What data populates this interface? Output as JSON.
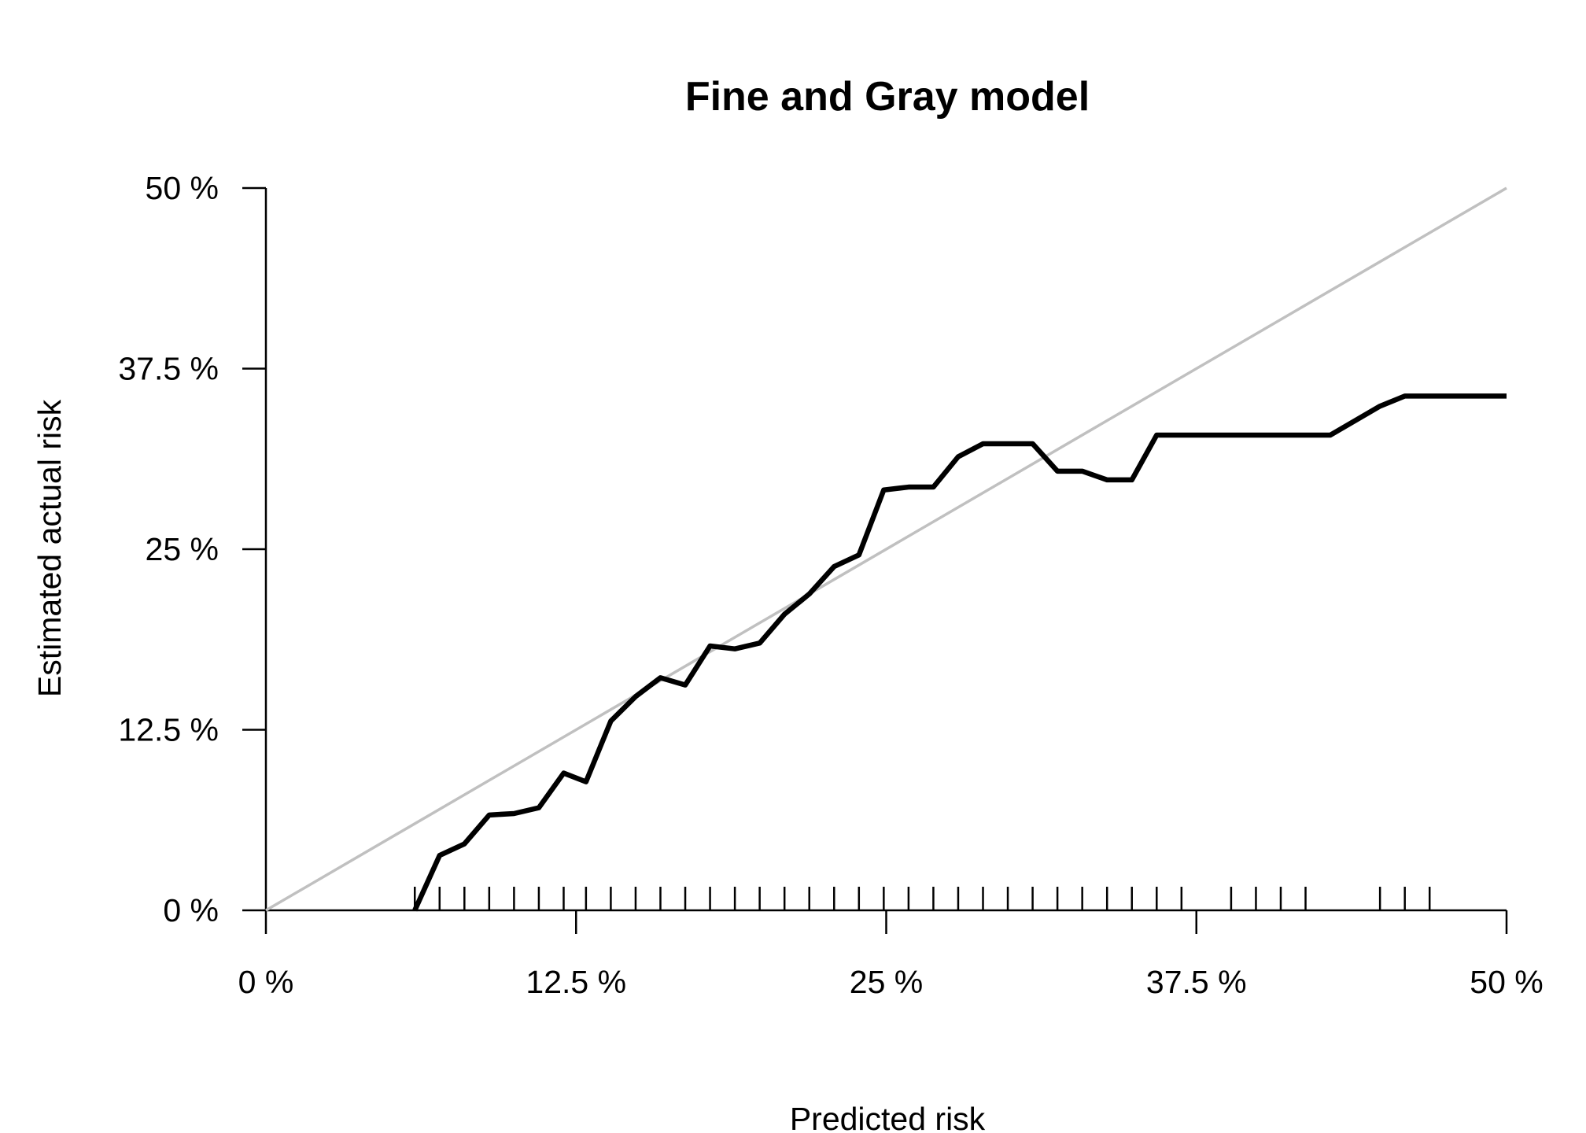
{
  "chart_data": {
    "type": "line",
    "title": "Fine and Gray model",
    "xlabel": "Predicted risk",
    "ylabel": "Estimated actual risk",
    "xlim": [
      0,
      50
    ],
    "ylim": [
      0,
      50
    ],
    "x_ticks": [
      "0 %",
      "12.5 %",
      "25 %",
      "37.5 %",
      "50 %"
    ],
    "y_ticks": [
      "0 %",
      "12.5 %",
      "25 %",
      "37.5 %",
      "50 %"
    ],
    "x_tick_values": [
      0,
      12.5,
      25,
      37.5,
      50
    ],
    "y_tick_values": [
      0,
      12.5,
      25,
      37.5,
      50
    ],
    "grid": false,
    "colors": {
      "calibration": "#000000",
      "reference": "#c0c0c0"
    },
    "series": [
      {
        "role": "reference-diagonal",
        "x": [
          0,
          50
        ],
        "y": [
          0,
          50
        ]
      },
      {
        "role": "calibration-curve",
        "x": [
          6.0,
          7.0,
          8.0,
          9.0,
          10.0,
          11.0,
          12.0,
          12.9,
          13.9,
          14.9,
          15.9,
          16.9,
          17.9,
          18.9,
          19.9,
          20.9,
          21.9,
          22.9,
          23.9,
          24.9,
          25.9,
          26.9,
          27.9,
          28.9,
          29.9,
          30.9,
          31.9,
          32.9,
          33.9,
          34.9,
          35.9,
          36.9,
          37.9,
          38.9,
          39.9,
          40.9,
          41.9,
          42.9,
          43.9,
          44.9,
          45.9,
          46.9,
          47.9,
          48.9,
          50.0
        ],
        "y": [
          0,
          3.8,
          4.6,
          6.6,
          6.7,
          7.1,
          9.5,
          8.9,
          13.1,
          14.8,
          16.1,
          15.6,
          18.3,
          18.1,
          18.5,
          20.5,
          21.9,
          23.8,
          24.6,
          29.1,
          29.3,
          29.3,
          31.4,
          32.3,
          32.3,
          32.3,
          30.4,
          30.4,
          29.8,
          29.8,
          32.9,
          32.9,
          32.9,
          32.9,
          32.9,
          32.9,
          32.9,
          32.9,
          33.9,
          34.9,
          35.6,
          35.6,
          35.6,
          35.6,
          35.6
        ]
      }
    ],
    "rug": [
      6.0,
      7.0,
      8.0,
      9.0,
      10.0,
      11.0,
      12.0,
      12.9,
      13.9,
      14.9,
      15.9,
      16.9,
      17.9,
      18.9,
      19.9,
      20.9,
      21.9,
      22.9,
      23.9,
      24.9,
      25.9,
      26.9,
      27.9,
      28.9,
      29.9,
      30.9,
      31.9,
      32.9,
      33.9,
      34.9,
      35.9,
      36.9,
      38.9,
      39.9,
      40.9,
      41.9,
      44.9,
      45.9,
      46.9
    ]
  }
}
